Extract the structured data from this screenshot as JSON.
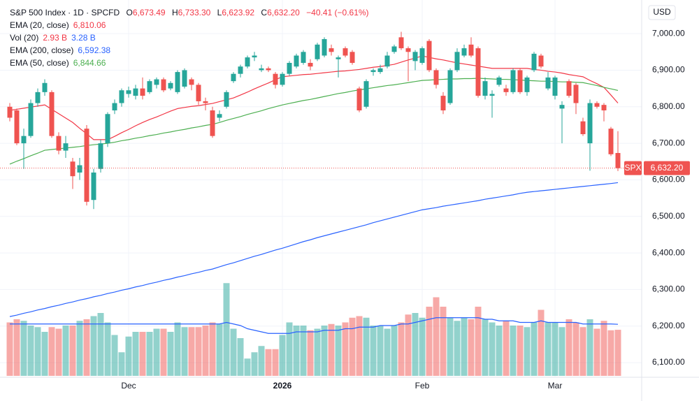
{
  "chart_data": {
    "type": "candlestick",
    "header": {
      "title": "S&P 500 Index · 1D · SPCFD",
      "ohlc": [
        {
          "key": "O",
          "label": "6,673.49"
        },
        {
          "key": "H",
          "label": "6,733.30"
        },
        {
          "key": "L",
          "label": "6,623.92"
        },
        {
          "key": "C",
          "label": "6,632.20"
        }
      ],
      "change": "−40.41 (−0.61%)"
    },
    "currency": "USD",
    "price_tag": {
      "symbol": "SPX",
      "label": "6,632.20"
    },
    "up_color": "#26a69a",
    "down_color": "#ef5350",
    "categories": [
      null,
      null,
      null,
      null,
      null,
      null,
      null,
      null,
      null,
      null,
      null,
      null,
      null,
      null,
      null,
      null,
      null,
      "Dec",
      null,
      null,
      null,
      null,
      null,
      null,
      null,
      null,
      null,
      null,
      null,
      null,
      null,
      null,
      null,
      null,
      null,
      null,
      null,
      null,
      null,
      "2026",
      null,
      null,
      null,
      null,
      null,
      null,
      null,
      null,
      null,
      null,
      null,
      null,
      null,
      null,
      null,
      null,
      null,
      null,
      null,
      "Feb",
      null,
      null,
      null,
      null,
      null,
      null,
      null,
      null,
      null,
      null,
      null,
      null,
      null,
      null,
      null,
      null,
      null,
      null,
      "Mar",
      null,
      null,
      null,
      null,
      null,
      null,
      null,
      null,
      null
    ],
    "open": [
      6800,
      6790,
      6700,
      6720,
      6810,
      6840,
      6840,
      6720,
      6680,
      6650,
      6620,
      6740,
      6545,
      6630,
      6700,
      6790,
      6810,
      6835,
      6830,
      6850,
      6840,
      6860,
      6875,
      6850,
      6840,
      6855,
      6875,
      6860,
      6815,
      6790,
      6770,
      6800,
      6870,
      6890,
      6910,
      6935,
      6900,
      6905,
      6890,
      6860,
      6890,
      6910,
      6920,
      6920,
      6930,
      6940,
      6960,
      6930,
      6960,
      6950,
      6850,
      6800,
      6895,
      6895,
      6910,
      6950,
      6990,
      6960,
      6925,
      6920,
      6980,
      6900,
      6830,
      6810,
      6900,
      6940,
      6970,
      6960,
      6830,
      6830,
      6860,
      6850,
      6840,
      6900,
      6840,
      6900,
      6940,
      6850,
      6830,
      6795,
      6870,
      6860,
      6760,
      6700,
      6810,
      6805,
      6740,
      6673.49
    ],
    "high": [
      6810,
      6795,
      6740,
      6820,
      6850,
      6875,
      6845,
      6730,
      6720,
      6660,
      6660,
      6750,
      6630,
      6710,
      6785,
      6820,
      6850,
      6855,
      6860,
      6880,
      6875,
      6880,
      6880,
      6870,
      6900,
      6905,
      6880,
      6865,
      6825,
      6800,
      6790,
      6845,
      6895,
      6915,
      6940,
      6950,
      6915,
      6910,
      6895,
      6895,
      6925,
      6945,
      6955,
      6930,
      6975,
      6990,
      6970,
      6940,
      6965,
      6955,
      6855,
      6875,
      6905,
      6915,
      6950,
      6970,
      7005,
      6965,
      6955,
      6965,
      6985,
      6905,
      6840,
      6905,
      6960,
      6970,
      6990,
      6965,
      6880,
      6845,
      6885,
      6860,
      6905,
      6905,
      6885,
      6950,
      6945,
      6895,
      6885,
      6815,
      6875,
      6865,
      6770,
      6820,
      6815,
      6810,
      6745,
      6733.3
    ],
    "low": [
      6760,
      6695,
      6630,
      6715,
      6800,
      6830,
      6715,
      6670,
      6660,
      6575,
      6600,
      6530,
      6520,
      6620,
      6690,
      6780,
      6800,
      6825,
      6820,
      6820,
      6835,
      6850,
      6840,
      6845,
      6835,
      6850,
      6845,
      6805,
      6790,
      6715,
      6760,
      6795,
      6865,
      6880,
      6905,
      6925,
      6895,
      6895,
      6850,
      6855,
      6885,
      6905,
      6915,
      6900,
      6925,
      6935,
      6940,
      6880,
      6935,
      6915,
      6785,
      6795,
      6885,
      6890,
      6905,
      6945,
      6955,
      6870,
      6900,
      6915,
      6895,
      6850,
      6780,
      6805,
      6895,
      6935,
      6935,
      6825,
      6820,
      6770,
      6855,
      6830,
      6835,
      6835,
      6830,
      6895,
      6905,
      6845,
      6820,
      6700,
      6825,
      6780,
      6720,
      6625,
      6795,
      6760,
      6665,
      6623.92
    ],
    "close": [
      6770,
      6700,
      6720,
      6810,
      6840,
      6865,
      6720,
      6680,
      6700,
      6610,
      6640,
      6540,
      6620,
      6700,
      6780,
      6810,
      6845,
      6845,
      6850,
      6830,
      6870,
      6875,
      6845,
      6865,
      6895,
      6900,
      6860,
      6815,
      6810,
      6720,
      6780,
      6840,
      6890,
      6910,
      6935,
      6940,
      6905,
      6900,
      6860,
      6890,
      6920,
      6940,
      6950,
      6910,
      6970,
      6985,
      6950,
      6935,
      6940,
      6920,
      6790,
      6870,
      6900,
      6905,
      6940,
      6965,
      6960,
      6950,
      6950,
      6960,
      6900,
      6860,
      6790,
      6900,
      6950,
      6960,
      6940,
      6830,
      6870,
      6835,
      6880,
      6840,
      6900,
      6840,
      6880,
      6945,
      6910,
      6880,
      6880,
      6805,
      6830,
      6810,
      6725,
      6810,
      6800,
      6790,
      6670,
      6632.2
    ],
    "overlays": [
      {
        "name": "EMA (20, close)",
        "label": "6,810.06",
        "color": "#f23645",
        "values": [
          6790,
          6793,
          6796,
          6799,
          6802,
          6805,
          6793,
          6781,
          6769,
          6757,
          6741,
          6726,
          6710,
          6710,
          6710,
          6719,
          6729,
          6738,
          6748,
          6757,
          6765,
          6772,
          6780,
          6788,
          6795,
          6798,
          6801,
          6803,
          6806,
          6809,
          6814,
          6819,
          6824,
          6832,
          6840,
          6849,
          6857,
          6865,
          6874,
          6882,
          6884,
          6886,
          6888,
          6889,
          6891,
          6893,
          6895,
          6897,
          6898,
          6900,
          6902,
          6905,
          6908,
          6910,
          6913,
          6916,
          6922,
          6928,
          6933,
          6939,
          6935,
          6931,
          6928,
          6924,
          6920,
          6917,
          6914,
          6911,
          6908,
          6905,
          6905,
          6905,
          6905,
          6905,
          6905,
          6902,
          6900,
          6897,
          6895,
          6892,
          6888,
          6885,
          6882,
          6872,
          6863,
          6853,
          6832,
          6810.06
        ]
      },
      {
        "name": "EMA (200, close)",
        "label": "6,592.38",
        "color": "#2962ff",
        "values": [
          6226,
          6230,
          6235,
          6239,
          6244,
          6248,
          6253,
          6257,
          6262,
          6266,
          6271,
          6275,
          6280,
          6284,
          6289,
          6293,
          6298,
          6302,
          6307,
          6311,
          6316,
          6320,
          6325,
          6329,
          6334,
          6338,
          6343,
          6347,
          6352,
          6356,
          6362,
          6368,
          6373,
          6379,
          6385,
          6391,
          6396,
          6402,
          6408,
          6413,
          6419,
          6425,
          6431,
          6436,
          6442,
          6447,
          6452,
          6457,
          6462,
          6467,
          6472,
          6477,
          6483,
          6488,
          6493,
          6498,
          6503,
          6508,
          6513,
          6518,
          6521,
          6524,
          6528,
          6531,
          6534,
          6537,
          6540,
          6543,
          6547,
          6550,
          6553,
          6556,
          6559,
          6563,
          6566,
          6568,
          6570,
          6572,
          6574,
          6576,
          6578,
          6580,
          6582,
          6584,
          6586,
          6588,
          6590,
          6592.38
        ]
      },
      {
        "name": "EMA (50, close)",
        "label": "6,844.66",
        "color": "#4caf50",
        "values": [
          6643,
          6651,
          6658,
          6666,
          6673,
          6681,
          6683,
          6685,
          6687,
          6689,
          6691,
          6694,
          6696,
          6698,
          6700,
          6703,
          6707,
          6710,
          6714,
          6717,
          6721,
          6724,
          6728,
          6731,
          6735,
          6738,
          6742,
          6745,
          6749,
          6752,
          6757,
          6763,
          6768,
          6773,
          6779,
          6784,
          6789,
          6795,
          6800,
          6805,
          6809,
          6813,
          6817,
          6820,
          6824,
          6828,
          6832,
          6836,
          6839,
          6843,
          6846,
          6849,
          6852,
          6855,
          6858,
          6860,
          6863,
          6866,
          6869,
          6872,
          6873,
          6874,
          6875,
          6876,
          6876,
          6877,
          6877,
          6878,
          6877,
          6876,
          6875,
          6875,
          6874,
          6873,
          6872,
          6871,
          6870,
          6870,
          6869,
          6868,
          6868,
          6867,
          6866,
          6862,
          6858,
          6853,
          6849,
          6844.66
        ]
      }
    ],
    "volume": {
      "name": "Vol (20)",
      "label": "2.93 B",
      "ylim": [
        0,
        12
      ],
      "values": [
        3.4,
        3.6,
        3.5,
        3.2,
        3.1,
        2.8,
        3.1,
        3.0,
        3.2,
        3.2,
        3.5,
        3.6,
        3.8,
        4.0,
        3.4,
        2.6,
        1.5,
        2.5,
        2.8,
        2.8,
        2.8,
        3.0,
        3.0,
        2.8,
        3.4,
        3.1,
        3.1,
        3.1,
        3.2,
        3.4,
        3.3,
        5.9,
        3.0,
        2.4,
        1.1,
        1.5,
        1.9,
        1.7,
        1.7,
        2.6,
        3.4,
        3.2,
        3.2,
        2.9,
        3.0,
        3.2,
        3.3,
        3.2,
        3.4,
        3.7,
        3.8,
        3.7,
        3.2,
        3.2,
        3.0,
        3.2,
        3.4,
        3.9,
        4.0,
        3.7,
        4.4,
        5.0,
        4.4,
        3.7,
        3.5,
        3.7,
        3.6,
        4.4,
        3.6,
        3.4,
        3.2,
        3.5,
        3.2,
        3.2,
        3.1,
        3.4,
        4.2,
        3.4,
        3.4,
        3.1,
        3.6,
        3.4,
        3.1,
        3.6,
        3.0,
        3.5,
        2.9,
        2.93
      ],
      "ema": {
        "label": "3.28 B",
        "color": "#2962ff",
        "values": [
          3.3,
          3.3,
          3.3,
          3.3,
          3.3,
          3.3,
          3.3,
          3.3,
          3.3,
          3.3,
          3.3,
          3.3,
          3.3,
          3.3,
          3.3,
          3.3,
          3.3,
          3.3,
          3.3,
          3.3,
          3.3,
          3.3,
          3.3,
          3.3,
          3.3,
          3.3,
          3.3,
          3.3,
          3.3,
          3.3,
          3.3,
          3.4,
          3.3,
          3.2,
          3.0,
          2.9,
          2.8,
          2.7,
          2.7,
          2.7,
          2.7,
          2.8,
          2.8,
          2.8,
          2.8,
          2.9,
          2.9,
          2.9,
          3.0,
          3.0,
          3.1,
          3.1,
          3.1,
          3.2,
          3.2,
          3.2,
          3.3,
          3.3,
          3.4,
          3.5,
          3.6,
          3.7,
          3.7,
          3.7,
          3.7,
          3.7,
          3.7,
          3.7,
          3.6,
          3.6,
          3.5,
          3.5,
          3.5,
          3.4,
          3.4,
          3.4,
          3.5,
          3.4,
          3.4,
          3.4,
          3.4,
          3.4,
          3.3,
          3.3,
          3.3,
          3.3,
          3.3,
          3.28
        ]
      }
    },
    "ylim": [
      6060,
      7092
    ],
    "yticks": [
      {
        "value": 6100,
        "label": "6,100.00"
      },
      {
        "value": 6200,
        "label": "6,200.00"
      },
      {
        "value": 6300,
        "label": "6,300.00"
      },
      {
        "value": 6400,
        "label": "6,400.00"
      },
      {
        "value": 6500,
        "label": "6,500.00"
      },
      {
        "value": 6600,
        "label": "6,600.00"
      },
      {
        "value": 6700,
        "label": "6,700.00"
      },
      {
        "value": 6800,
        "label": "6,800.00"
      },
      {
        "value": 6900,
        "label": "6,900.00"
      },
      {
        "value": 7000,
        "label": "7,000.00"
      }
    ],
    "grid": true
  }
}
